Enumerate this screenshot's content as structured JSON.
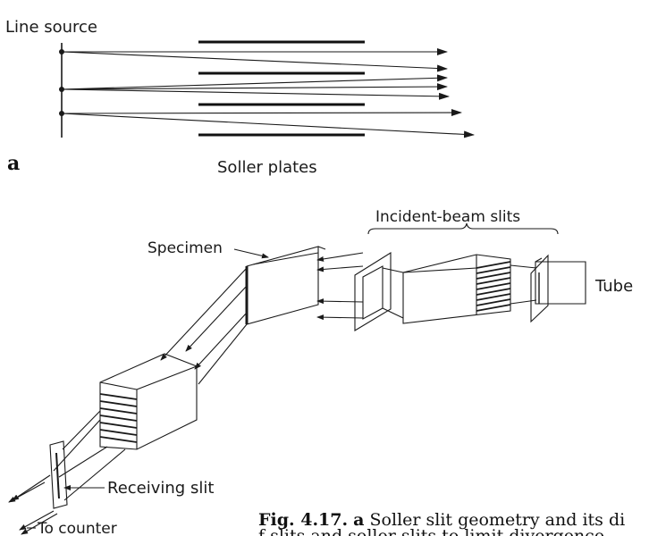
{
  "panel_a": {
    "title": "Line source",
    "panel_letter": "a",
    "plates_label": "Soller plates"
  },
  "panel_b": {
    "specimen_label": "Specimen",
    "incident_label": "Incident-beam slits",
    "tube_label": "Tube",
    "receiving_label": "Receiving slit",
    "counter_label": "To counter"
  },
  "caption": {
    "fig_number": "Fig. 4.17.",
    "panel_ref": "a",
    "line1_text": "Soller slit geometry and its di",
    "line2_text": "f slits and soller slits to limit divergence"
  },
  "colors": {
    "ink": "#1a1a1a"
  }
}
